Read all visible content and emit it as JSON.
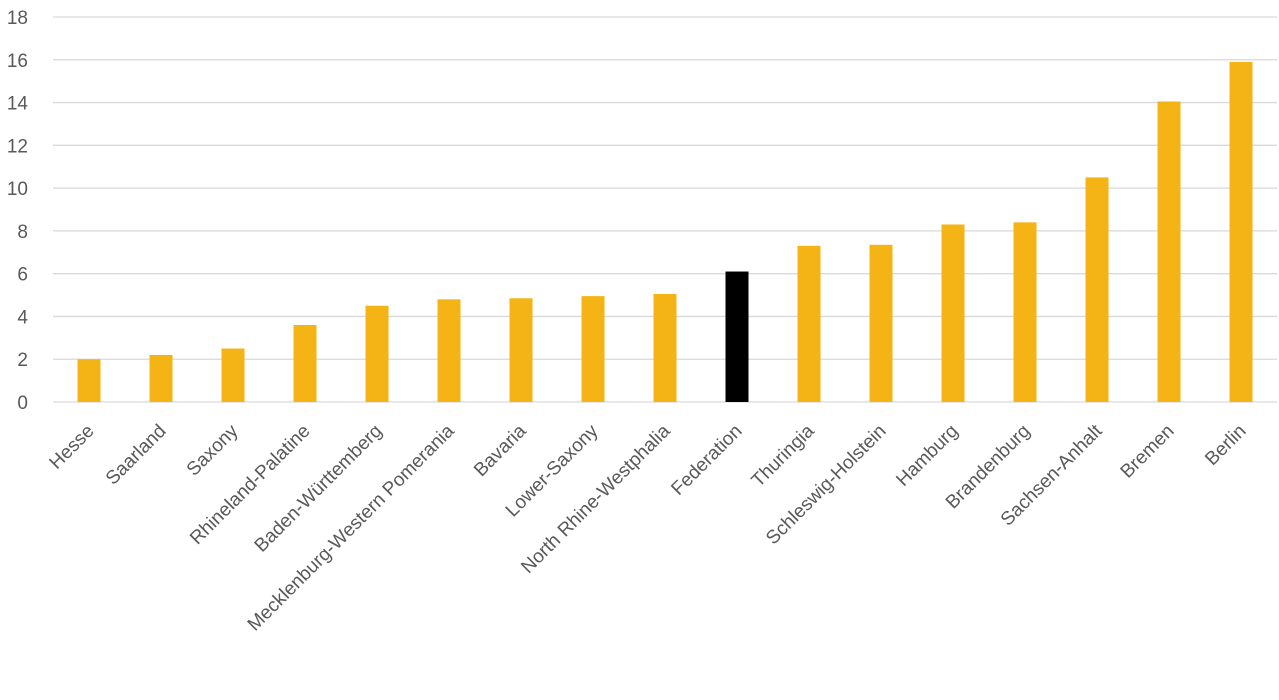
{
  "chart_data": {
    "type": "bar",
    "categories": [
      "Hesse",
      "Saarland",
      "Saxony",
      "Rhineland-Palatine",
      "Baden-Württemberg",
      "Mecklenburg-Western Pomerania",
      "Bavaria",
      "Lower-Saxony",
      "North Rhine-Westphalia",
      "Federation",
      "Thuringia",
      "Schleswig-Holstein",
      "Hamburg",
      "Brandenburg",
      "Sachsen-Anhalt",
      "Bremen",
      "Berlin"
    ],
    "values": [
      2.0,
      2.2,
      2.5,
      3.6,
      4.5,
      4.8,
      4.85,
      4.95,
      5.05,
      6.1,
      7.3,
      7.35,
      8.3,
      8.4,
      10.5,
      14.05,
      15.9
    ],
    "highlight_category": "Federation",
    "colors": {
      "bar": "#F5B416",
      "highlight": "#000000",
      "grid": "#D9D9D9",
      "text": "#595959"
    },
    "ylim": [
      0,
      18
    ],
    "yticks": [
      "0",
      "2",
      "4",
      "6",
      "8",
      "10",
      "12",
      "14",
      "16",
      "18"
    ],
    "grid": true,
    "title": "",
    "xlabel": "",
    "ylabel": ""
  }
}
